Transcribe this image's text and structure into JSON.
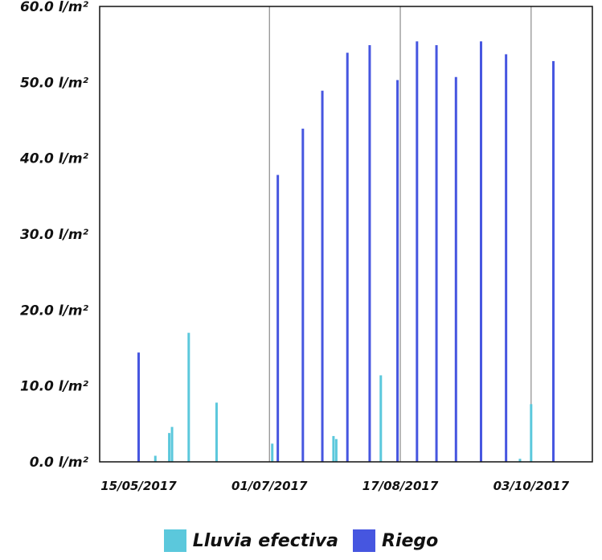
{
  "chart_data": {
    "type": "bar",
    "title": "",
    "xlabel": "",
    "ylabel": "",
    "ylim": [
      0,
      60
    ],
    "y_ticks": [
      "0.0 l/m²",
      "10.0 l/m²",
      "20.0 l/m²",
      "30.0 l/m²",
      "40.0 l/m²",
      "50.0 l/m²",
      "60.0 l/m²"
    ],
    "y_tick_values": [
      0,
      10,
      20,
      30,
      40,
      50,
      60
    ],
    "xlim": [
      "2017-05-01",
      "2017-10-25"
    ],
    "x_ticks": [
      "15/05/2017",
      "01/07/2017",
      "17/08/2017",
      "03/10/2017"
    ],
    "x_tick_dates": [
      "2017-05-15",
      "2017-07-01",
      "2017-08-17",
      "2017-10-03"
    ],
    "vertical_gridlines": [
      "2017-07-01",
      "2017-08-17",
      "2017-10-03"
    ],
    "legend_position": "bottom",
    "series": [
      {
        "name": "Lluvia efectiva",
        "color": "#5bc8dc",
        "points": [
          {
            "date": "2017-05-21",
            "value": 0.8
          },
          {
            "date": "2017-05-26",
            "value": 3.8
          },
          {
            "date": "2017-05-27",
            "value": 4.6
          },
          {
            "date": "2017-06-02",
            "value": 17.0
          },
          {
            "date": "2017-06-12",
            "value": 7.8
          },
          {
            "date": "2017-07-02",
            "value": 2.4
          },
          {
            "date": "2017-07-24",
            "value": 3.4
          },
          {
            "date": "2017-07-25",
            "value": 3.0
          },
          {
            "date": "2017-08-10",
            "value": 11.4
          },
          {
            "date": "2017-09-29",
            "value": 0.4
          },
          {
            "date": "2017-10-03",
            "value": 7.6
          }
        ]
      },
      {
        "name": "Riego",
        "color": "#4656e0",
        "points": [
          {
            "date": "2017-05-15",
            "value": 14.4
          },
          {
            "date": "2017-07-04",
            "value": 37.8
          },
          {
            "date": "2017-07-13",
            "value": 43.9
          },
          {
            "date": "2017-07-20",
            "value": 48.9
          },
          {
            "date": "2017-07-29",
            "value": 53.9
          },
          {
            "date": "2017-08-06",
            "value": 54.9
          },
          {
            "date": "2017-08-16",
            "value": 50.3
          },
          {
            "date": "2017-08-23",
            "value": 55.4
          },
          {
            "date": "2017-08-30",
            "value": 54.9
          },
          {
            "date": "2017-09-06",
            "value": 50.7
          },
          {
            "date": "2017-09-15",
            "value": 55.4
          },
          {
            "date": "2017-09-24",
            "value": 53.7
          },
          {
            "date": "2017-10-11",
            "value": 52.8
          }
        ]
      }
    ]
  }
}
